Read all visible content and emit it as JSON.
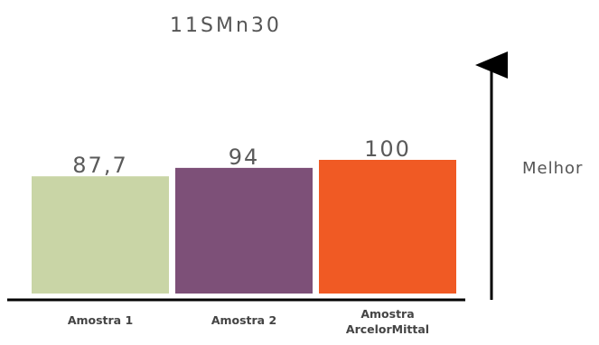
{
  "chart_data": {
    "type": "bar",
    "title": "11SMn30",
    "categories": [
      "Amostra 1",
      "Amostra 2",
      "Amostra ArcelorMittal"
    ],
    "category_label_lines": [
      [
        "Amostra 1"
      ],
      [
        "Amostra 2"
      ],
      [
        "Amostra",
        "ArcelorMittal"
      ]
    ],
    "values": [
      87.7,
      94,
      100
    ],
    "value_labels": [
      "87,7",
      "94",
      "100"
    ],
    "colors": [
      "#c9d5a6",
      "#7d5078",
      "#f05a24"
    ],
    "ylim": [
      0,
      100
    ],
    "grid": false,
    "direction_label": "Melhor"
  }
}
